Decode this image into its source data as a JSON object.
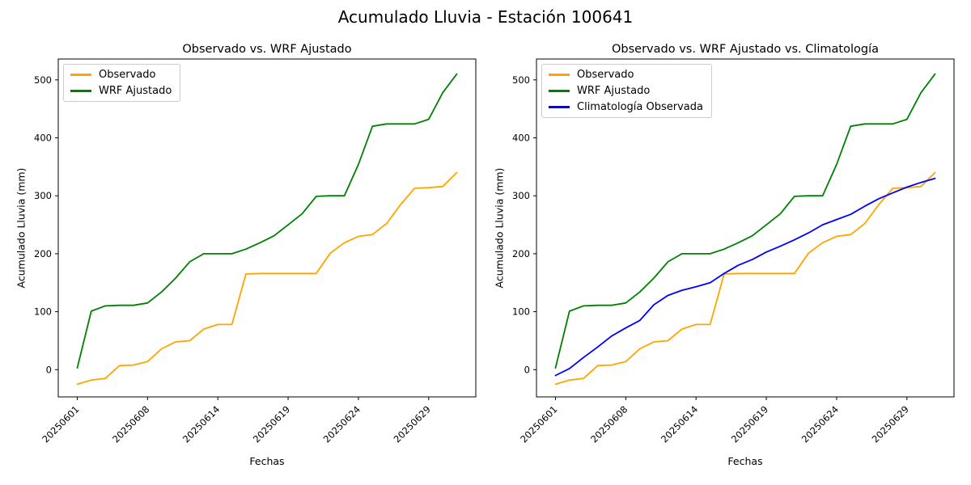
{
  "figure": {
    "suptitle": "Acumulado Lluvia - Estación 100641",
    "background": "#ffffff"
  },
  "colors": {
    "observado": "#FFA500",
    "wrf_ajustado": "#008000",
    "climatologia": "#0000FF",
    "spine": "#000000",
    "text": "#000000"
  },
  "chart_data": [
    {
      "type": "line",
      "title": "Observado vs. WRF Ajustado",
      "xlabel": "Fechas",
      "ylabel": "Acumulado Lluvia (mm)",
      "x_type": "index",
      "n_points": 28,
      "xtick_positions": [
        0,
        5,
        10,
        15,
        20,
        25
      ],
      "xtick_labels": [
        "20250601",
        "20250608",
        "20250614",
        "20250619",
        "20250624",
        "20250629"
      ],
      "ytick_values": [
        0,
        100,
        200,
        300,
        400,
        500
      ],
      "xlim": [
        -1.35,
        28.35
      ],
      "ylim": [
        -47,
        536
      ],
      "grid": false,
      "legend_position": "upper left",
      "series": [
        {
          "name": "Observado",
          "color": "#FFA500",
          "values": [
            -25,
            -18,
            -15,
            7,
            8,
            14,
            36,
            48,
            50,
            70,
            78,
            78,
            165,
            166,
            166,
            166,
            166,
            166,
            201,
            219,
            230,
            233,
            252,
            285,
            313,
            314,
            316,
            340
          ]
        },
        {
          "name": "WRF Ajustado",
          "color": "#008000",
          "values": [
            3,
            101,
            110,
            111,
            111,
            115,
            134,
            158,
            186,
            200,
            200,
            200,
            208,
            219,
            231,
            250,
            269,
            299,
            300,
            300,
            354,
            420,
            424,
            424,
            424,
            432,
            478,
            510
          ]
        }
      ]
    },
    {
      "type": "line",
      "title": "Observado vs. WRF Ajustado vs. Climatología",
      "xlabel": "Fechas",
      "ylabel": "Acumulado Lluvia (mm)",
      "x_type": "index",
      "n_points": 28,
      "xtick_positions": [
        0,
        5,
        10,
        15,
        20,
        25
      ],
      "xtick_labels": [
        "20250601",
        "20250608",
        "20250614",
        "20250619",
        "20250624",
        "20250629"
      ],
      "ytick_values": [
        0,
        100,
        200,
        300,
        400,
        500
      ],
      "xlim": [
        -1.35,
        28.35
      ],
      "ylim": [
        -47,
        536
      ],
      "grid": false,
      "legend_position": "upper left",
      "series": [
        {
          "name": "Observado",
          "color": "#FFA500",
          "values": [
            -25,
            -18,
            -15,
            7,
            8,
            14,
            36,
            48,
            50,
            70,
            78,
            78,
            165,
            166,
            166,
            166,
            166,
            166,
            201,
            219,
            230,
            233,
            252,
            285,
            313,
            314,
            316,
            340
          ]
        },
        {
          "name": "WRF Ajustado",
          "color": "#008000",
          "values": [
            3,
            101,
            110,
            111,
            111,
            115,
            134,
            158,
            186,
            200,
            200,
            200,
            208,
            219,
            231,
            250,
            269,
            299,
            300,
            300,
            354,
            420,
            424,
            424,
            424,
            432,
            478,
            510
          ]
        },
        {
          "name": "Climatología Observada",
          "color": "#0000FF",
          "values": [
            -10,
            2,
            21,
            39,
            58,
            72,
            85,
            112,
            128,
            137,
            143,
            150,
            166,
            180,
            190,
            203,
            213,
            224,
            236,
            250,
            259,
            268,
            282,
            295,
            305,
            315,
            323,
            330
          ]
        }
      ]
    }
  ]
}
